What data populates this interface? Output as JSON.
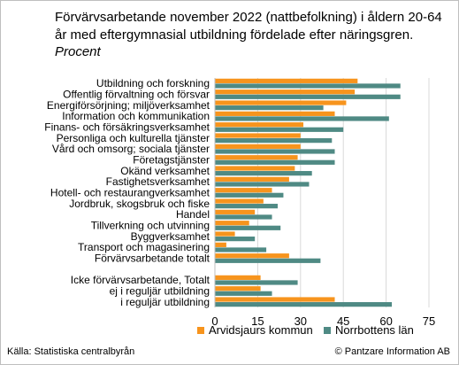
{
  "title_main": "Förvärvsarbetande november 2022 (nattbefolkning) i åldern 20-64 år med eftergymnasial utbildning fördelade efter näringsgren.",
  "title_unit": "Procent",
  "source": "Källa: Statistiska centralbyrån",
  "copyright": "© Pantzare Information AB",
  "colors": {
    "series_a": "#f7941d",
    "series_b": "#4f8a84",
    "grid": "#d9d9d9"
  },
  "chart_data": {
    "type": "bar",
    "orientation": "horizontal",
    "title": "Förvärvsarbetande november 2022 (nattbefolkning) i åldern 20-64 år med eftergymnasial utbildning fördelade efter näringsgren. Procent",
    "xlabel": "",
    "ylabel": "",
    "xlim": [
      0,
      75
    ],
    "xticks": [
      0,
      15,
      30,
      45,
      60,
      75
    ],
    "grid": true,
    "legend": "bottom",
    "categories": [
      "Utbildning och forskning",
      "Offentlig förvaltning och försvar",
      "Energiförsörjning; miljöverksamhet",
      "Information och kommunikation",
      "Finans- och försäkringsverksamhet",
      "Personliga och kulturella tjänster",
      "Vård och omsorg; sociala tjänster",
      "Företagstjänster",
      "Okänd verksamhet",
      "Fastighetsverksamhet",
      "Hotell- och restaurangverksamhet",
      "Jordbruk, skogsbruk och fiske",
      "Handel",
      "Tillverkning och utvinning",
      "Byggverksamhet",
      "Transport och magasinering",
      "Förvärvsarbetande totalt",
      "",
      "Icke förvärvsarbetande, Totalt",
      "ej i reguljär utbildning",
      "i reguljär utbildning"
    ],
    "series": [
      {
        "name": "Arvidsjaurs kommun",
        "values": [
          50,
          49,
          46,
          42,
          31,
          30,
          30,
          29,
          28,
          26,
          20,
          17,
          14,
          12,
          7,
          4,
          26,
          null,
          16,
          16,
          42
        ]
      },
      {
        "name": "Norrbottens län",
        "values": [
          65,
          65,
          38,
          61,
          45,
          41,
          42,
          42,
          34,
          33,
          24,
          22,
          20,
          23,
          14,
          18,
          37,
          null,
          29,
          20,
          62
        ]
      }
    ]
  }
}
